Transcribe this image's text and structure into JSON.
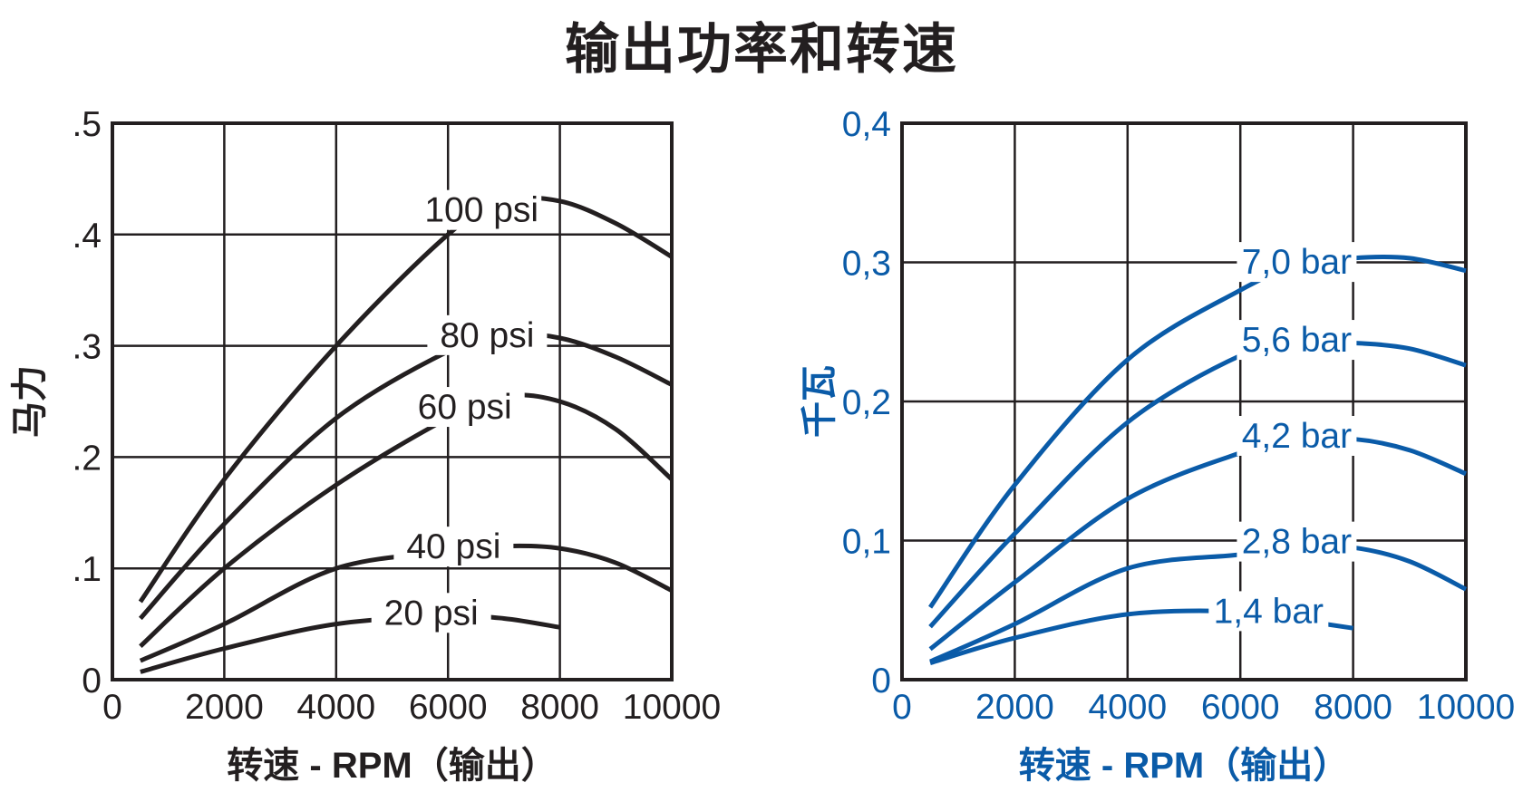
{
  "title": "输出功率和转速",
  "colors": {
    "hp": "#231f20",
    "kw": "#0a5ba8"
  },
  "chart_data": [
    {
      "type": "line",
      "title": "输出功率和转速",
      "xlabel": "转速 - RPM（输出）",
      "ylabel": "马力",
      "xlim": [
        0,
        10000
      ],
      "ylim": [
        0,
        0.5
      ],
      "xticks": [
        0,
        2000,
        4000,
        6000,
        8000,
        10000
      ],
      "xtick_labels": [
        "0",
        "2000",
        "4000",
        "6000",
        "8000",
        "10000"
      ],
      "yticks": [
        0,
        0.1,
        0.2,
        0.3,
        0.4,
        0.5
      ],
      "ytick_labels": [
        "0",
        ".1",
        ".2",
        ".3",
        ".4",
        ".5"
      ],
      "grid": true,
      "color": "#231f20",
      "series": [
        {
          "name": "100 psi",
          "x": [
            500,
            2000,
            4000,
            6000,
            7000,
            8000,
            9000,
            10000
          ],
          "y": [
            0.07,
            0.18,
            0.3,
            0.4,
            0.43,
            0.43,
            0.41,
            0.38
          ]
        },
        {
          "name": "80 psi",
          "x": [
            500,
            2000,
            4000,
            6000,
            7000,
            8000,
            9000,
            10000
          ],
          "y": [
            0.055,
            0.14,
            0.235,
            0.295,
            0.31,
            0.307,
            0.29,
            0.265
          ]
        },
        {
          "name": "60 psi",
          "x": [
            500,
            2000,
            4000,
            6000,
            7000,
            8000,
            9000,
            10000
          ],
          "y": [
            0.03,
            0.1,
            0.175,
            0.235,
            0.255,
            0.25,
            0.225,
            0.18
          ]
        },
        {
          "name": "40 psi",
          "x": [
            500,
            2000,
            4000,
            6000,
            7000,
            8000,
            9000,
            10000
          ],
          "y": [
            0.017,
            0.05,
            0.1,
            0.115,
            0.12,
            0.118,
            0.105,
            0.08
          ]
        },
        {
          "name": "20 psi",
          "x": [
            500,
            2000,
            4000,
            6000,
            7000,
            8000
          ],
          "y": [
            0.007,
            0.028,
            0.05,
            0.057,
            0.055,
            0.047
          ]
        }
      ]
    },
    {
      "type": "line",
      "title": "输出功率和转速",
      "xlabel": "转速 - RPM（输出）",
      "ylabel": "千瓦",
      "xlim": [
        0,
        10000
      ],
      "ylim": [
        0,
        0.4
      ],
      "xticks": [
        0,
        2000,
        4000,
        6000,
        8000,
        10000
      ],
      "xtick_labels": [
        "0",
        "2000",
        "4000",
        "6000",
        "8000",
        "10000"
      ],
      "yticks": [
        0,
        0.1,
        0.2,
        0.3,
        0.4
      ],
      "ytick_labels": [
        "0",
        "0,1",
        "0,2",
        "0,3",
        "0,4"
      ],
      "grid": true,
      "color": "#0a5ba8",
      "series": [
        {
          "name": "7,0 bar",
          "x": [
            500,
            2000,
            4000,
            6000,
            7000,
            8000,
            9000,
            10000
          ],
          "y": [
            0.052,
            0.14,
            0.23,
            0.28,
            0.297,
            0.303,
            0.303,
            0.294
          ]
        },
        {
          "name": "5,6 bar",
          "x": [
            500,
            2000,
            4000,
            6000,
            7000,
            8000,
            9000,
            10000
          ],
          "y": [
            0.038,
            0.105,
            0.185,
            0.233,
            0.241,
            0.242,
            0.238,
            0.226
          ]
        },
        {
          "name": "4,2 bar",
          "x": [
            500,
            2000,
            4000,
            6000,
            7000,
            8000,
            9000,
            10000
          ],
          "y": [
            0.022,
            0.07,
            0.13,
            0.163,
            0.172,
            0.173,
            0.165,
            0.148
          ]
        },
        {
          "name": "2,8 bar",
          "x": [
            500,
            2000,
            4000,
            6000,
            7000,
            8000,
            9000,
            10000
          ],
          "y": [
            0.013,
            0.04,
            0.08,
            0.09,
            0.096,
            0.095,
            0.085,
            0.065
          ]
        },
        {
          "name": "1,4 bar",
          "x": [
            500,
            2000,
            4000,
            6000,
            7000,
            8000
          ],
          "y": [
            0.012,
            0.03,
            0.047,
            0.049,
            0.043,
            0.037
          ]
        }
      ]
    }
  ]
}
